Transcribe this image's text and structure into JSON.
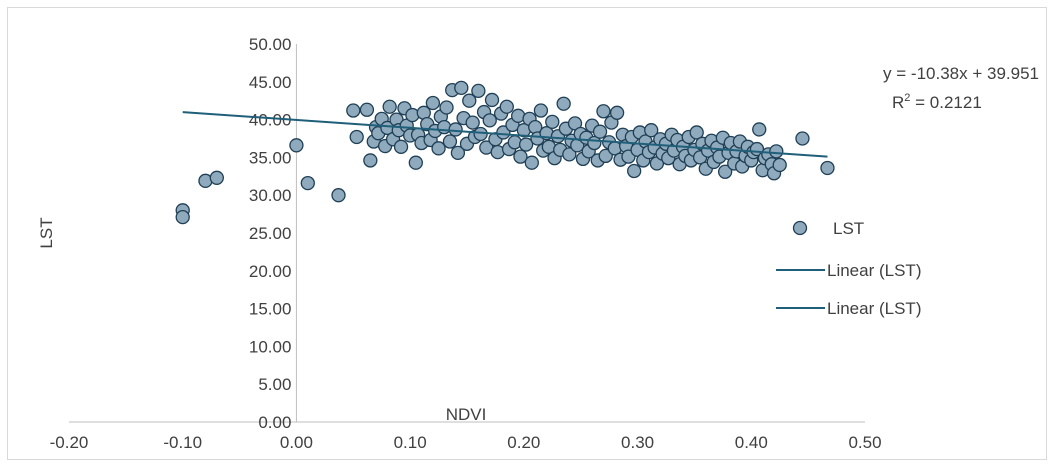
{
  "chart_data": {
    "type": "scatter",
    "title": "",
    "xlabel": "NDVI",
    "ylabel": "LST",
    "xlim": [
      -0.2,
      0.5
    ],
    "ylim": [
      0,
      50
    ],
    "xticks": [
      "-0.20",
      "-0.10",
      "0.00",
      "0.10",
      "0.20",
      "0.30",
      "0.40",
      "0.50"
    ],
    "yticks": [
      "0.00",
      "5.00",
      "10.00",
      "15.00",
      "20.00",
      "25.00",
      "30.00",
      "35.00",
      "40.00",
      "45.00",
      "50.00"
    ],
    "grid": false,
    "legend_position": "right",
    "legend": [
      "LST",
      "Linear (LST)",
      "Linear (LST)"
    ],
    "colors": {
      "marker_fill": "#8fa9bd",
      "marker_stroke": "#1f3f55",
      "trendline": "#1f5f7a",
      "axis": "#bfbfbf"
    },
    "trendline": {
      "slope": -10.38,
      "intercept": 39.951,
      "x_range": [
        -0.1,
        0.467
      ],
      "equation": "y = -10.38x + 39.951",
      "r2_prefix": "R",
      "r2_sup": "2",
      "r2_value": " = 0.2121"
    },
    "series": [
      {
        "name": "LST",
        "points": [
          [
            -0.1,
            28.0
          ],
          [
            -0.1,
            27.1
          ],
          [
            -0.08,
            31.9
          ],
          [
            -0.07,
            32.3
          ],
          [
            0.0,
            36.6
          ],
          [
            0.01,
            31.6
          ],
          [
            0.037,
            30.0
          ],
          [
            0.05,
            41.2
          ],
          [
            0.053,
            37.7
          ],
          [
            0.062,
            41.3
          ],
          [
            0.065,
            34.6
          ],
          [
            0.068,
            37.1
          ],
          [
            0.07,
            39.0
          ],
          [
            0.072,
            38.2
          ],
          [
            0.075,
            40.1
          ],
          [
            0.078,
            36.5
          ],
          [
            0.08,
            38.9
          ],
          [
            0.082,
            41.7
          ],
          [
            0.085,
            37.4
          ],
          [
            0.088,
            40.0
          ],
          [
            0.09,
            38.6
          ],
          [
            0.092,
            36.4
          ],
          [
            0.095,
            41.5
          ],
          [
            0.097,
            39.2
          ],
          [
            0.1,
            37.9
          ],
          [
            0.102,
            40.6
          ],
          [
            0.105,
            34.3
          ],
          [
            0.107,
            38.0
          ],
          [
            0.11,
            36.9
          ],
          [
            0.112,
            40.9
          ],
          [
            0.115,
            39.4
          ],
          [
            0.118,
            37.3
          ],
          [
            0.12,
            42.2
          ],
          [
            0.122,
            38.5
          ],
          [
            0.125,
            36.2
          ],
          [
            0.127,
            40.4
          ],
          [
            0.13,
            39.0
          ],
          [
            0.132,
            41.6
          ],
          [
            0.135,
            37.1
          ],
          [
            0.137,
            43.9
          ],
          [
            0.14,
            38.7
          ],
          [
            0.142,
            35.6
          ],
          [
            0.145,
            44.2
          ],
          [
            0.147,
            40.2
          ],
          [
            0.15,
            36.8
          ],
          [
            0.152,
            42.5
          ],
          [
            0.155,
            39.6
          ],
          [
            0.157,
            37.7
          ],
          [
            0.16,
            43.8
          ],
          [
            0.162,
            38.1
          ],
          [
            0.165,
            41.0
          ],
          [
            0.167,
            36.3
          ],
          [
            0.17,
            39.9
          ],
          [
            0.172,
            42.6
          ],
          [
            0.175,
            37.4
          ],
          [
            0.177,
            35.7
          ],
          [
            0.18,
            40.8
          ],
          [
            0.182,
            38.3
          ],
          [
            0.185,
            41.7
          ],
          [
            0.187,
            36.1
          ],
          [
            0.19,
            39.3
          ],
          [
            0.192,
            37.0
          ],
          [
            0.195,
            40.5
          ],
          [
            0.197,
            35.1
          ],
          [
            0.2,
            38.6
          ],
          [
            0.202,
            36.7
          ],
          [
            0.205,
            40.1
          ],
          [
            0.207,
            34.3
          ],
          [
            0.21,
            39.0
          ],
          [
            0.212,
            37.5
          ],
          [
            0.215,
            41.2
          ],
          [
            0.217,
            35.9
          ],
          [
            0.22,
            38.2
          ],
          [
            0.222,
            36.4
          ],
          [
            0.225,
            39.7
          ],
          [
            0.227,
            34.9
          ],
          [
            0.23,
            37.8
          ],
          [
            0.232,
            36.0
          ],
          [
            0.235,
            42.1
          ],
          [
            0.237,
            38.8
          ],
          [
            0.24,
            35.4
          ],
          [
            0.242,
            37.2
          ],
          [
            0.245,
            39.5
          ],
          [
            0.247,
            36.6
          ],
          [
            0.25,
            38.1
          ],
          [
            0.252,
            34.8
          ],
          [
            0.255,
            37.6
          ],
          [
            0.257,
            35.8
          ],
          [
            0.26,
            39.2
          ],
          [
            0.262,
            36.9
          ],
          [
            0.265,
            34.6
          ],
          [
            0.267,
            38.4
          ],
          [
            0.27,
            41.1
          ],
          [
            0.272,
            35.2
          ],
          [
            0.275,
            37.0
          ],
          [
            0.277,
            39.6
          ],
          [
            0.28,
            36.2
          ],
          [
            0.282,
            40.9
          ],
          [
            0.285,
            34.7
          ],
          [
            0.287,
            38.0
          ],
          [
            0.29,
            36.5
          ],
          [
            0.292,
            35.1
          ],
          [
            0.295,
            37.7
          ],
          [
            0.297,
            33.2
          ],
          [
            0.3,
            36.0
          ],
          [
            0.302,
            38.3
          ],
          [
            0.305,
            34.6
          ],
          [
            0.307,
            37.1
          ],
          [
            0.31,
            35.7
          ],
          [
            0.312,
            38.6
          ],
          [
            0.315,
            36.3
          ],
          [
            0.317,
            34.2
          ],
          [
            0.32,
            37.4
          ],
          [
            0.322,
            35.5
          ],
          [
            0.325,
            36.8
          ],
          [
            0.327,
            34.9
          ],
          [
            0.33,
            38.0
          ],
          [
            0.332,
            35.9
          ],
          [
            0.335,
            37.3
          ],
          [
            0.337,
            34.1
          ],
          [
            0.34,
            36.4
          ],
          [
            0.342,
            35.2
          ],
          [
            0.345,
            37.7
          ],
          [
            0.347,
            34.6
          ],
          [
            0.35,
            36.0
          ],
          [
            0.352,
            38.3
          ],
          [
            0.355,
            35.0
          ],
          [
            0.357,
            36.8
          ],
          [
            0.36,
            33.5
          ],
          [
            0.362,
            35.9
          ],
          [
            0.365,
            37.2
          ],
          [
            0.367,
            34.4
          ],
          [
            0.37,
            36.3
          ],
          [
            0.372,
            35.1
          ],
          [
            0.375,
            37.6
          ],
          [
            0.377,
            33.1
          ],
          [
            0.38,
            35.6
          ],
          [
            0.382,
            36.9
          ],
          [
            0.385,
            34.2
          ],
          [
            0.387,
            35.8
          ],
          [
            0.39,
            37.1
          ],
          [
            0.392,
            33.8
          ],
          [
            0.395,
            35.2
          ],
          [
            0.397,
            36.4
          ],
          [
            0.4,
            34.6
          ],
          [
            0.402,
            35.7
          ],
          [
            0.405,
            36.1
          ],
          [
            0.407,
            38.7
          ],
          [
            0.41,
            33.3
          ],
          [
            0.412,
            34.9
          ],
          [
            0.415,
            35.4
          ],
          [
            0.418,
            34.1
          ],
          [
            0.42,
            32.9
          ],
          [
            0.422,
            35.8
          ],
          [
            0.425,
            34.0
          ],
          [
            0.445,
            37.5
          ],
          [
            0.467,
            33.6
          ]
        ]
      }
    ]
  }
}
